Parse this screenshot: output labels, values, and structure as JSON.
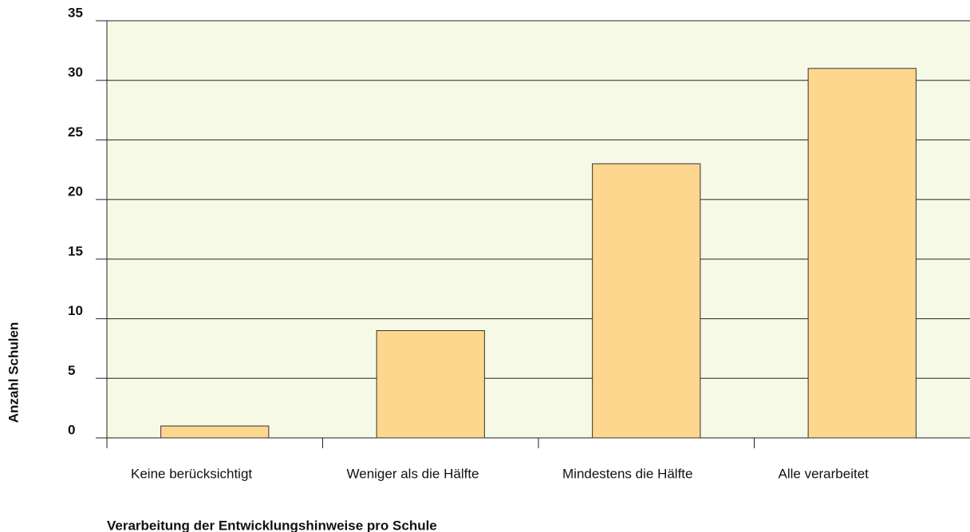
{
  "chart_data": {
    "type": "bar",
    "categories": [
      "Keine berücksichtigt",
      "Weniger als die Hälfte",
      "Mindestens die Hälfte",
      "Alle verarbeitet"
    ],
    "values": [
      1,
      9,
      23,
      31
    ],
    "color": "#fed78e",
    "ylim": [
      0,
      35
    ],
    "yticks": [
      0,
      5,
      10,
      15,
      20,
      25,
      30,
      35
    ],
    "grid": true,
    "xlabel": "Verarbeitung der Entwicklungshinweise pro Schule",
    "ylabel": "Anzahl Schulen"
  }
}
